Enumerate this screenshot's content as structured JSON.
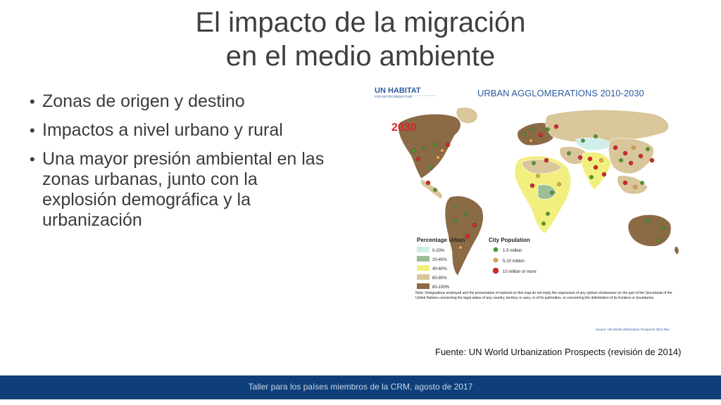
{
  "slide": {
    "title_line1": "El impacto de la migración",
    "title_line2": "en el medio ambiente",
    "bullets": [
      "Zonas de origen y destino",
      "Impactos a nivel urbano y rural",
      "Una mayor presión ambiental en las zonas urbanas, junto con la explosión demográfica y la urbanización"
    ],
    "source_caption": "Fuente: UN World Urbanization Prospects (revisión de 2014)",
    "footer": "Taller para los países miembros de la CRM, agosto de 2017"
  },
  "map": {
    "logo_text": "UN HABITAT",
    "logo_subtext": "FOR A BETTER URBAN FUTURE",
    "title": "URBAN AGGLOMERATIONS 2010-2030",
    "year_badge": "2030",
    "legend_left_title": "Percentage Urban",
    "legend_left_items": [
      {
        "label": "0-20%",
        "color": "#cfeee9"
      },
      {
        "label": "20-40%",
        "color": "#9dbf96"
      },
      {
        "label": "40-60%",
        "color": "#f1ef7e"
      },
      {
        "label": "60-80%",
        "color": "#d9c69a"
      },
      {
        "label": "80-100%",
        "color": "#8b6a46"
      }
    ],
    "legend_right_title": "City Population",
    "legend_right_items": [
      {
        "label": "1-5 million",
        "color": "#4c9a2a"
      },
      {
        "label": "5-10 million",
        "color": "#f0a347"
      },
      {
        "label": "10 million or more",
        "color": "#d8262a"
      }
    ],
    "note": "Note: Designations employed and the presentation of material on this map do not imply the expression of any opinion whatsoever on the part of the Secretariat of the United Nations concerning the legal status of any country, territory or area, or of its authorities, or concerning the delimitation of its frontiers or boundaries.",
    "source_small": "Source: UN World Urbanization Prospects 2014 Rev.",
    "colors": {
      "title_blue": "#2e5aa0",
      "badge_red": "#d8262a"
    }
  }
}
